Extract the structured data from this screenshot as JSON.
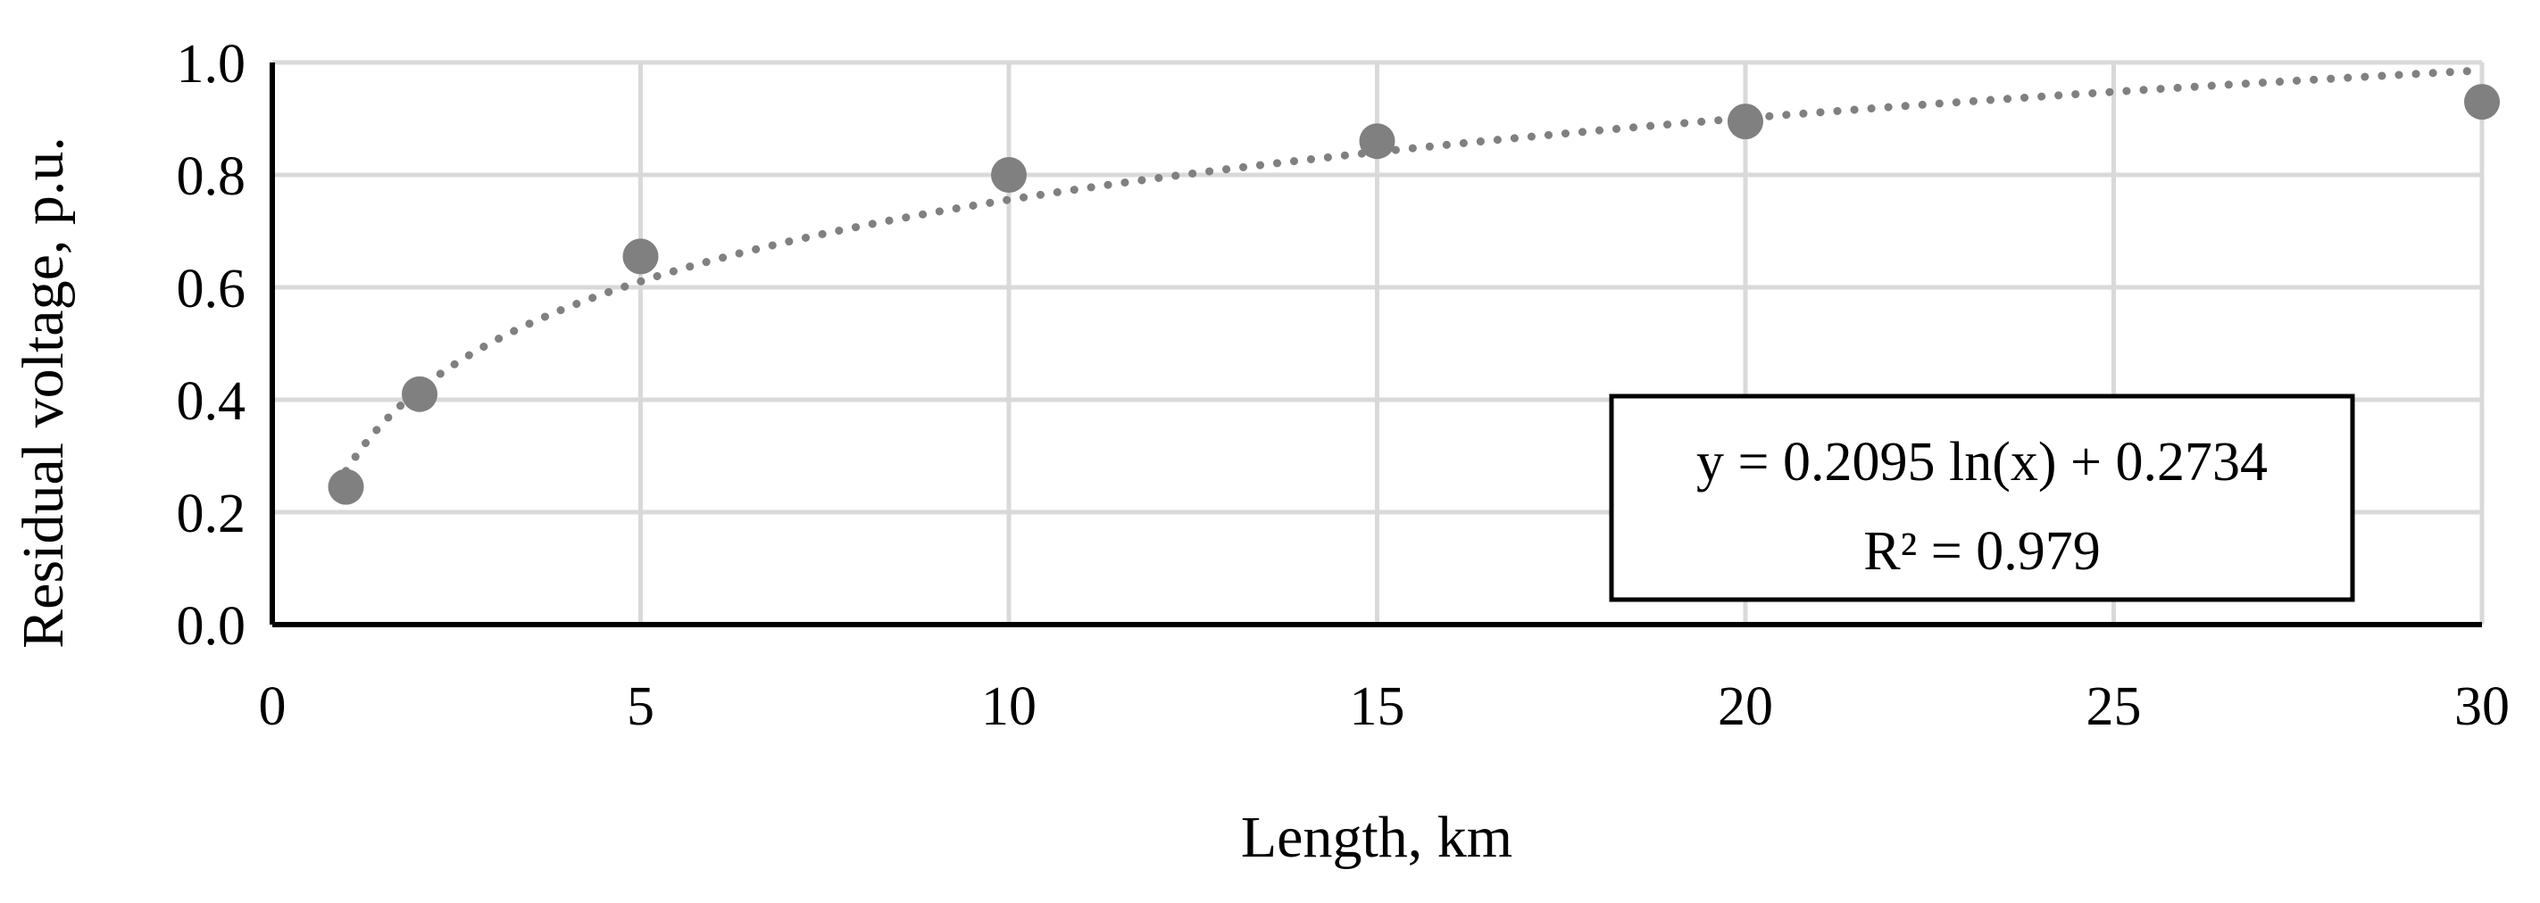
{
  "chart_data": {
    "type": "scatter",
    "title": "",
    "xlabel": "Length, km",
    "ylabel": "Residual voltage, p.u.",
    "xlim": [
      0,
      30
    ],
    "ylim": [
      0,
      1.0
    ],
    "x_ticks": [
      0,
      5,
      10,
      15,
      20,
      25,
      30
    ],
    "x_tick_labels": [
      "0",
      "5",
      "10",
      "15",
      "20",
      "25",
      "30"
    ],
    "y_ticks": [
      0,
      0.2,
      0.4,
      0.6,
      0.8,
      1.0
    ],
    "y_tick_labels": [
      "0.0",
      "0.2",
      "0.4",
      "0.6",
      "0.8",
      "1.0"
    ],
    "grid": true,
    "series": [
      {
        "x": [
          1,
          2,
          5,
          10,
          15,
          20,
          30
        ],
        "y": [
          0.245,
          0.41,
          0.655,
          0.8,
          0.86,
          0.895,
          0.93
        ],
        "color": "#808080"
      }
    ],
    "trendline": {
      "type": "logarithmic",
      "a": 0.2095,
      "b": 0.2734,
      "x_range": [
        1,
        30
      ],
      "style": "dotted",
      "color": "#808080",
      "equation": "y = 0.2095 ln(x) + 0.2734",
      "r_squared": "R² = 0.979"
    }
  }
}
